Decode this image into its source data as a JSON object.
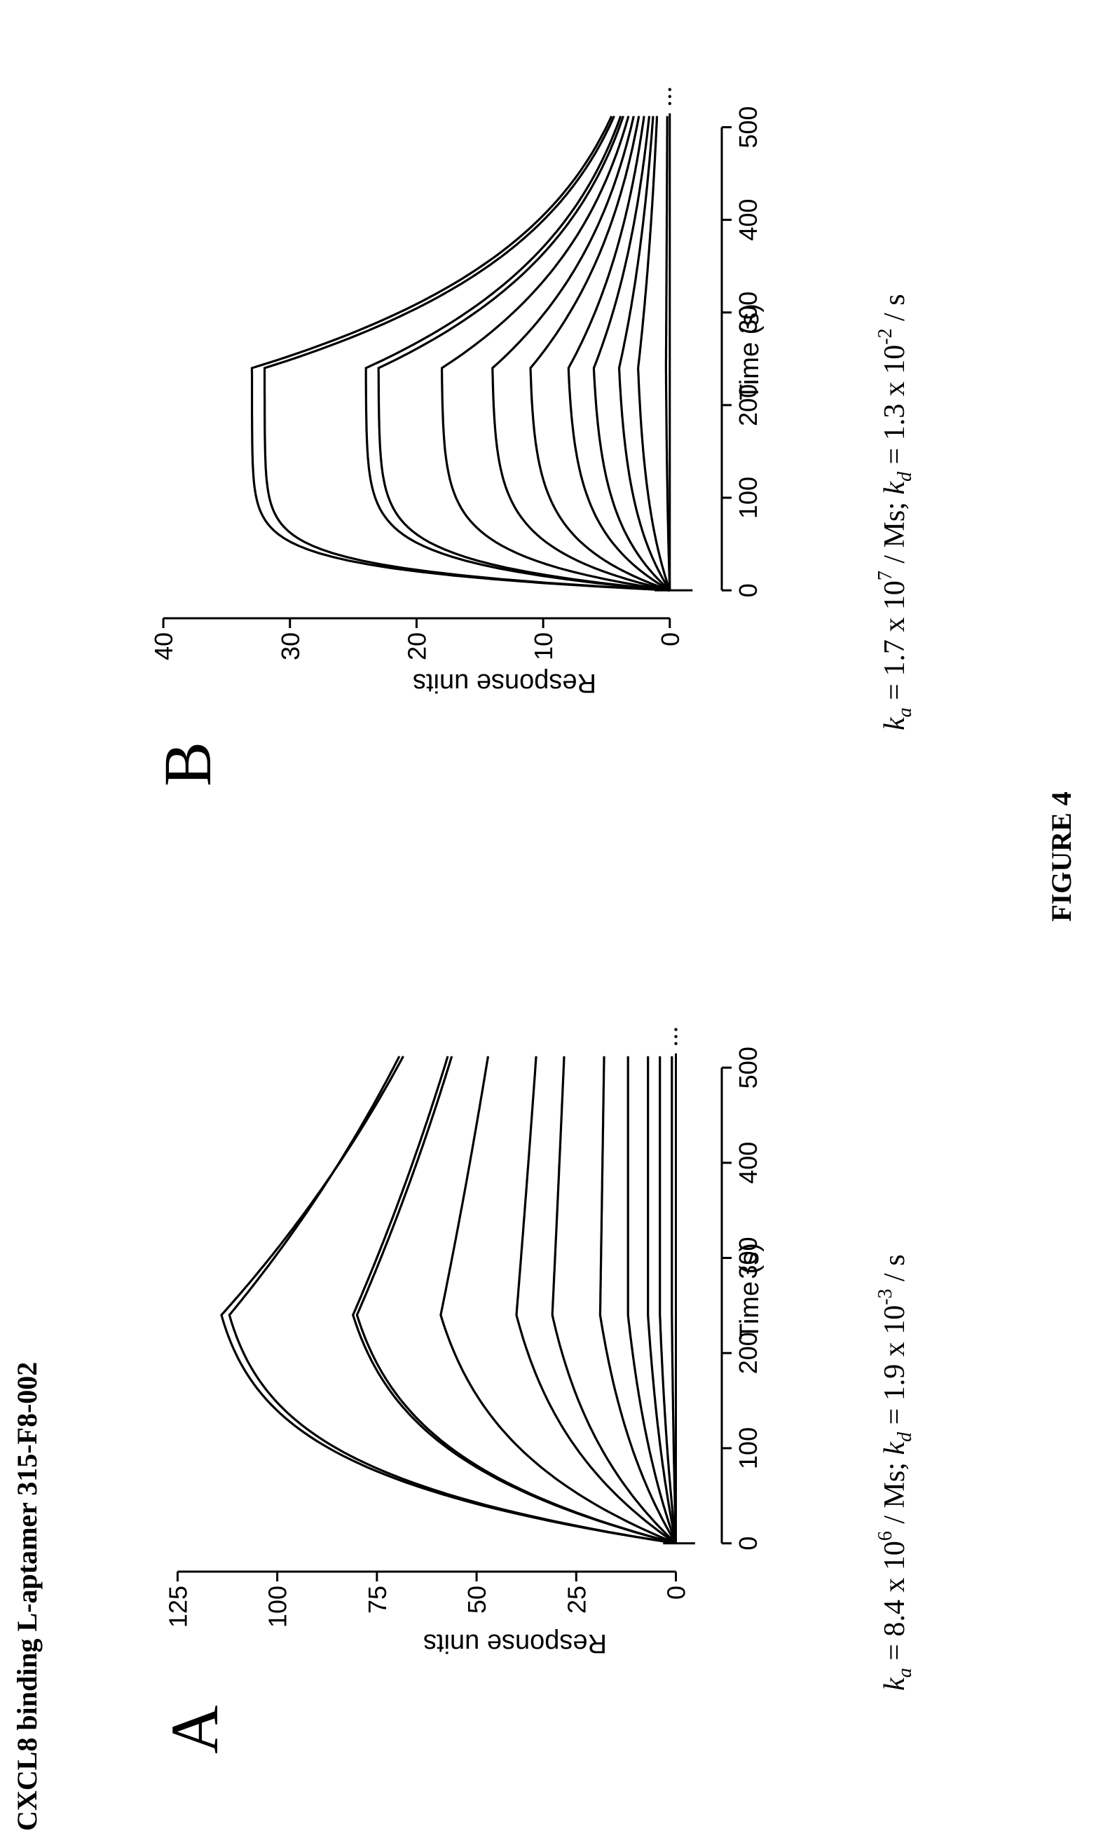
{
  "page_title": "CXCL8 binding L-aptamer 315-F8-002",
  "figure_label": "FIGURE 4",
  "chart_data": [
    {
      "type": "line",
      "panel_label": "A",
      "xlabel": "Time (s)",
      "ylabel": "Response units",
      "xlim": [
        -15,
        545
      ],
      "ylim": [
        -8,
        130
      ],
      "x_ticks": [
        0,
        100,
        200,
        300,
        400,
        500
      ],
      "y_ticks": [
        0,
        25,
        50,
        75,
        100,
        125
      ],
      "x_tick_labels": [
        "0",
        "100",
        "200",
        "300",
        "400",
        "500"
      ],
      "y_tick_labels": [
        "0",
        "25",
        "50",
        "75",
        "100",
        "125"
      ],
      "grid": false,
      "association_end": 240,
      "end_time": 515,
      "series": [
        {
          "peak": 114,
          "end": 68
        },
        {
          "peak": 112,
          "end": 69
        },
        {
          "peak": 81,
          "end": 57
        },
        {
          "peak": 80,
          "end": 56
        },
        {
          "peak": 59,
          "end": 47
        },
        {
          "peak": 40,
          "end": 35
        },
        {
          "peak": 31,
          "end": 28
        },
        {
          "peak": 19,
          "end": 18
        },
        {
          "peak": 12,
          "end": 12
        },
        {
          "peak": 7,
          "end": 7
        },
        {
          "peak": 4,
          "end": 4
        },
        {
          "peak": 1,
          "end": 1
        }
      ],
      "kinetics_text": {
        "ka_value": "8.4 x 10",
        "ka_exp": "6",
        "ka_unit": "/ Ms;",
        "kd_value": "1.9 x 10",
        "kd_exp": "-3",
        "kd_unit": "/ s"
      }
    },
    {
      "type": "line",
      "panel_label": "B",
      "xlabel": "Time (s)",
      "ylabel": "Response units",
      "xlim": [
        -15,
        545
      ],
      "ylim": [
        -3,
        41
      ],
      "x_ticks": [
        0,
        100,
        200,
        300,
        400,
        500
      ],
      "y_ticks": [
        0,
        10,
        20,
        30,
        40
      ],
      "x_tick_labels": [
        "0",
        "100",
        "200",
        "300",
        "400",
        "500"
      ],
      "y_tick_labels": [
        "0",
        "10",
        "20",
        "30",
        "40"
      ],
      "grid": false,
      "association_end": 240,
      "end_time": 515,
      "series": [
        {
          "peak": 33,
          "end": 4.5
        },
        {
          "peak": 32,
          "end": 4.3
        },
        {
          "peak": 24,
          "end": 3.8
        },
        {
          "peak": 23,
          "end": 3.6
        },
        {
          "peak": 18,
          "end": 3.2
        },
        {
          "peak": 14,
          "end": 2.8
        },
        {
          "peak": 11,
          "end": 2.4
        },
        {
          "peak": 8,
          "end": 2.0
        },
        {
          "peak": 6,
          "end": 1.6
        },
        {
          "peak": 4,
          "end": 1.3
        },
        {
          "peak": 2.5,
          "end": 1.0
        },
        {
          "peak": 0.3,
          "end": 0.2
        }
      ],
      "kinetics_text": {
        "ka_value": "1.7 x 10",
        "ka_exp": "7",
        "ka_unit": "/ Ms;",
        "kd_value": "1.3 x 10",
        "kd_exp": "-2",
        "kd_unit": "/ s"
      }
    }
  ]
}
